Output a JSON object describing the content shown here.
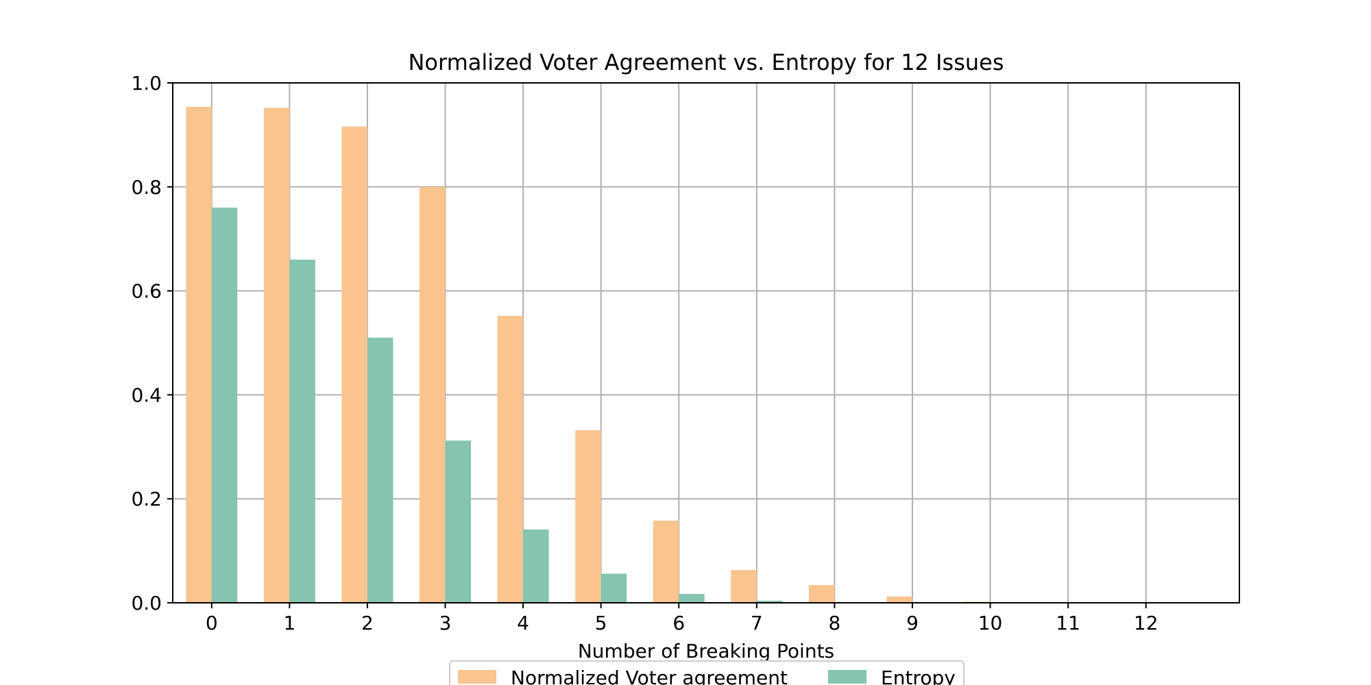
{
  "chart_data": {
    "type": "bar",
    "title": "Normalized Voter Agreement vs. Entropy for 12 Issues",
    "xlabel": "Number of Breaking Points",
    "ylabel": "",
    "categories": [
      "0",
      "1",
      "2",
      "3",
      "4",
      "5",
      "6",
      "7",
      "8",
      "9",
      "10",
      "11",
      "12"
    ],
    "x_tick_labels": [
      "0",
      "1",
      "2",
      "3",
      "4",
      "5",
      "6",
      "7",
      "8",
      "9",
      "10",
      "11",
      "12"
    ],
    "y_tick_labels": [
      "0.0",
      "0.2",
      "0.4",
      "0.6",
      "0.8",
      "1.0"
    ],
    "y_ticks": [
      0.0,
      0.2,
      0.4,
      0.6,
      0.8,
      1.0
    ],
    "ylim": [
      0,
      1.0
    ],
    "xlim": [
      -0.5,
      13.2
    ],
    "grid": true,
    "legend_position": "bottom-center",
    "series": [
      {
        "name": "Normalized Voter agreement",
        "color": "#fac48f",
        "values": [
          0.954,
          0.952,
          0.916,
          0.8,
          0.552,
          0.332,
          0.158,
          0.063,
          0.034,
          0.012,
          0.002,
          0.0,
          0.0
        ]
      },
      {
        "name": "Entropy",
        "color": "#85c4b0",
        "values": [
          0.76,
          0.66,
          0.51,
          0.312,
          0.141,
          0.056,
          0.017,
          0.004,
          0.0,
          0.0,
          0.0,
          0.0,
          0.0
        ]
      }
    ]
  }
}
